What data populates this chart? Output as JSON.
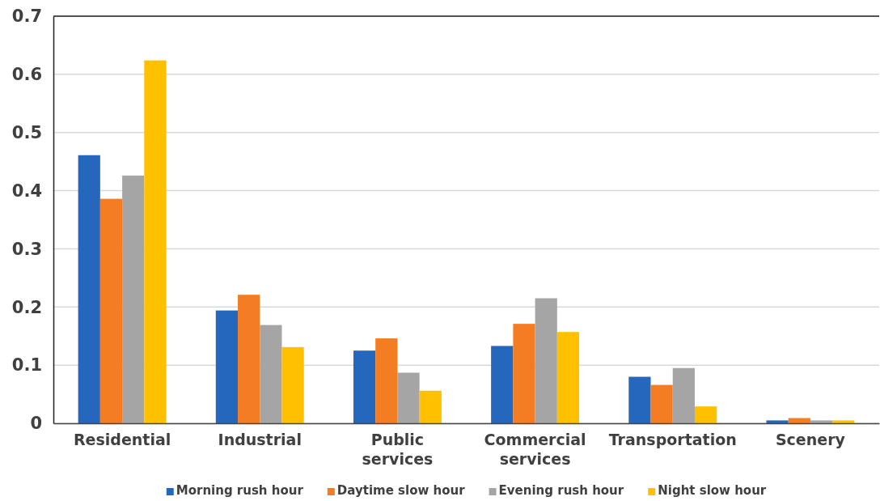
{
  "chart_data": {
    "type": "bar",
    "categories": [
      "Residential",
      "Industrial",
      "Public services",
      "Commercial services",
      "Transportation",
      "Scenery"
    ],
    "series": [
      {
        "name": "Morning rush hour",
        "color": "#2667be",
        "values": [
          0.461,
          0.194,
          0.125,
          0.133,
          0.08,
          0.005
        ]
      },
      {
        "name": "Daytime slow hour",
        "color": "#f47d23",
        "values": [
          0.386,
          0.221,
          0.146,
          0.171,
          0.066,
          0.009
        ]
      },
      {
        "name": "Evening rush hour",
        "color": "#a5a5a5",
        "values": [
          0.426,
          0.169,
          0.087,
          0.215,
          0.095,
          0.005
        ]
      },
      {
        "name": "Night slow hour",
        "color": "#ffc000",
        "values": [
          0.624,
          0.131,
          0.056,
          0.157,
          0.029,
          0.005
        ]
      }
    ],
    "ylim": [
      0,
      0.7
    ],
    "yticks": [
      0,
      0.1,
      0.2,
      0.3,
      0.4,
      0.5,
      0.6,
      0.7
    ],
    "grid": "y",
    "legend": "bottom"
  }
}
